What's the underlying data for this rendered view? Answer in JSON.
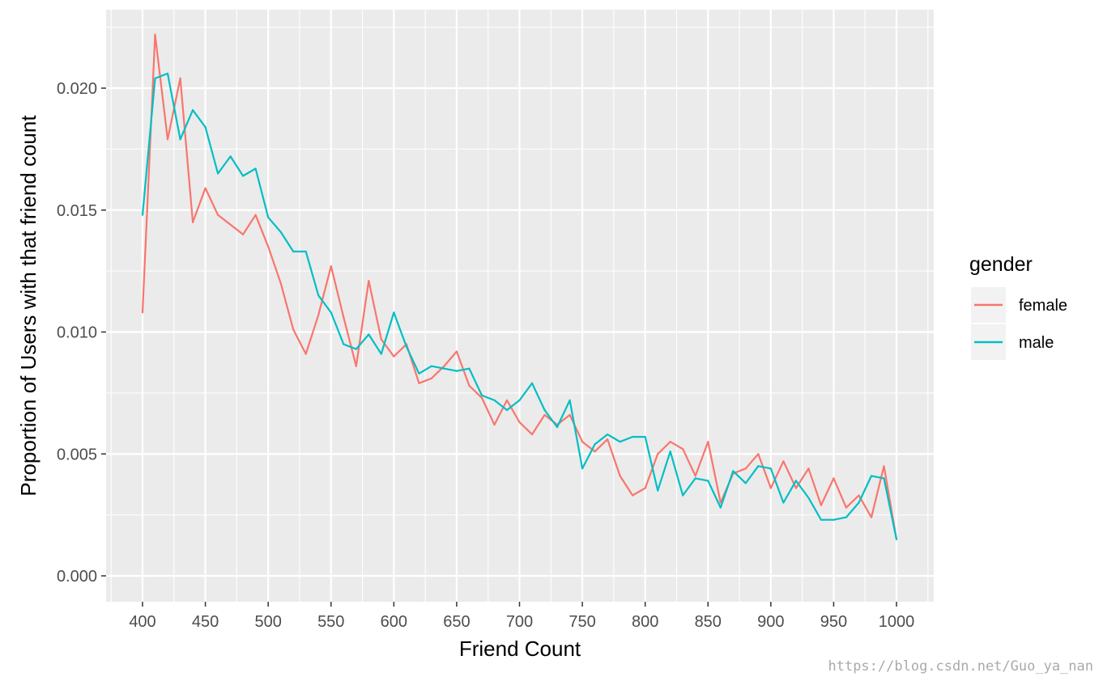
{
  "chart_data": {
    "type": "line",
    "title": "",
    "xlabel": "Friend Count",
    "ylabel": "Proportion of Users with that friend count",
    "xlim": [
      400,
      1000
    ],
    "ylim": [
      0.0,
      0.02
    ],
    "x_ticks": [
      400,
      450,
      500,
      550,
      600,
      650,
      700,
      750,
      800,
      850,
      900,
      950,
      1000
    ],
    "x_tick_labels": [
      "400",
      "450",
      "500",
      "550",
      "600",
      "650",
      "700",
      "750",
      "800",
      "850",
      "900",
      "950",
      "1000"
    ],
    "y_ticks": [
      0.0,
      0.005,
      0.01,
      0.015,
      0.02
    ],
    "y_tick_labels": [
      "0.000",
      "0.005",
      "0.010",
      "0.015",
      "0.020"
    ],
    "grid": true,
    "legend": {
      "title": "gender",
      "position": "right"
    },
    "x": [
      400,
      410,
      420,
      430,
      440,
      450,
      460,
      470,
      480,
      490,
      500,
      510,
      520,
      530,
      540,
      550,
      560,
      570,
      580,
      590,
      600,
      610,
      620,
      630,
      640,
      650,
      660,
      670,
      680,
      690,
      700,
      710,
      720,
      730,
      740,
      750,
      760,
      770,
      780,
      790,
      800,
      810,
      820,
      830,
      840,
      850,
      860,
      870,
      880,
      890,
      900,
      910,
      920,
      930,
      940,
      950,
      960,
      970,
      980,
      990,
      1000
    ],
    "series": [
      {
        "name": "female",
        "color": "#f8766d",
        "values": [
          0.0108,
          0.0222,
          0.0179,
          0.0204,
          0.0145,
          0.0159,
          0.0148,
          0.0144,
          0.014,
          0.0148,
          0.0135,
          0.012,
          0.0101,
          0.0091,
          0.0107,
          0.0127,
          0.0106,
          0.0086,
          0.0121,
          0.0097,
          0.009,
          0.0095,
          0.0079,
          0.0081,
          0.0086,
          0.0092,
          0.0078,
          0.0073,
          0.0062,
          0.0072,
          0.0063,
          0.0058,
          0.0066,
          0.0062,
          0.0066,
          0.0055,
          0.0051,
          0.0056,
          0.0041,
          0.0033,
          0.0036,
          0.005,
          0.0055,
          0.0052,
          0.0041,
          0.0055,
          0.003,
          0.0042,
          0.0044,
          0.005,
          0.0036,
          0.0047,
          0.0036,
          0.0044,
          0.0029,
          0.004,
          0.0028,
          0.0033,
          0.0024,
          0.0045,
          0.0015
        ]
      },
      {
        "name": "male",
        "color": "#00bfc4",
        "values": [
          0.0148,
          0.0204,
          0.0206,
          0.0179,
          0.0191,
          0.0184,
          0.0165,
          0.0172,
          0.0164,
          0.0167,
          0.0147,
          0.0141,
          0.0133,
          0.0133,
          0.0115,
          0.0108,
          0.0095,
          0.0093,
          0.0099,
          0.0091,
          0.0108,
          0.0094,
          0.0083,
          0.0086,
          0.0085,
          0.0084,
          0.0085,
          0.0074,
          0.0072,
          0.0068,
          0.0072,
          0.0079,
          0.0068,
          0.0061,
          0.0072,
          0.0044,
          0.0054,
          0.0058,
          0.0055,
          0.0057,
          0.0057,
          0.0035,
          0.0051,
          0.0033,
          0.004,
          0.0039,
          0.0028,
          0.0043,
          0.0038,
          0.0045,
          0.0044,
          0.003,
          0.0039,
          0.0032,
          0.0023,
          0.0023,
          0.0024,
          0.003,
          0.0041,
          0.004,
          0.0015
        ]
      }
    ]
  },
  "watermark": "https://blog.csdn.net/Guo_ya_nan"
}
